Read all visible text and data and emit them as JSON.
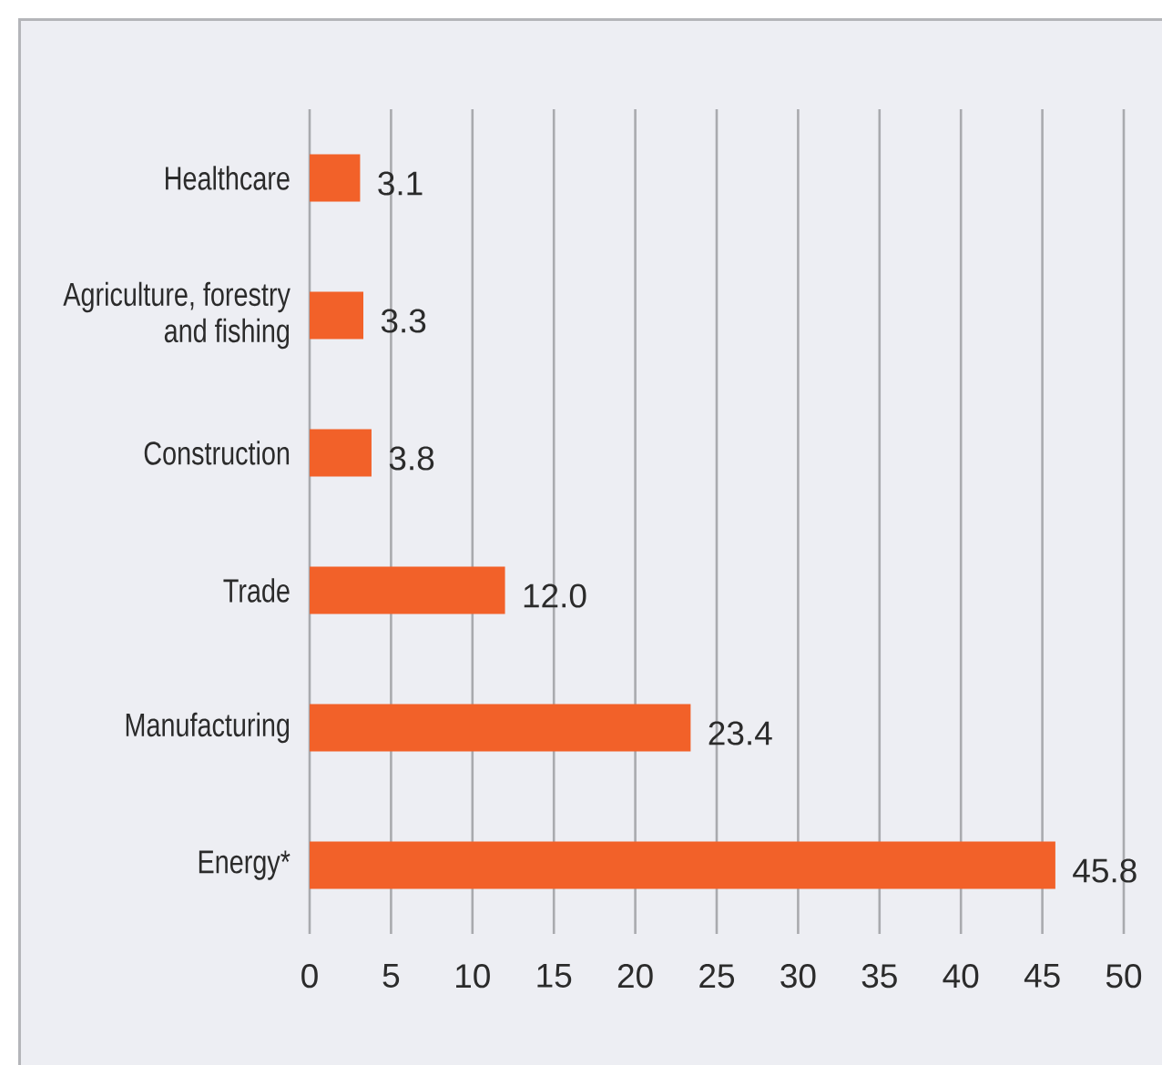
{
  "chart_data": {
    "type": "bar",
    "orientation": "horizontal",
    "categories": [
      "Healthcare",
      "Agriculture, forestry and fishing",
      "Construction",
      "Trade",
      "Manufacturing",
      "Energy*"
    ],
    "values": [
      3.1,
      3.3,
      3.8,
      12.0,
      23.4,
      45.8
    ],
    "value_labels": [
      "3.1",
      "3.3",
      "3.8",
      "12.0",
      "23.4",
      "45.8"
    ],
    "color": "#f26129",
    "xlim": [
      0,
      50
    ],
    "xticks": [
      0,
      5,
      10,
      15,
      20,
      25,
      30,
      35,
      40,
      45,
      50
    ],
    "grid": "x"
  }
}
